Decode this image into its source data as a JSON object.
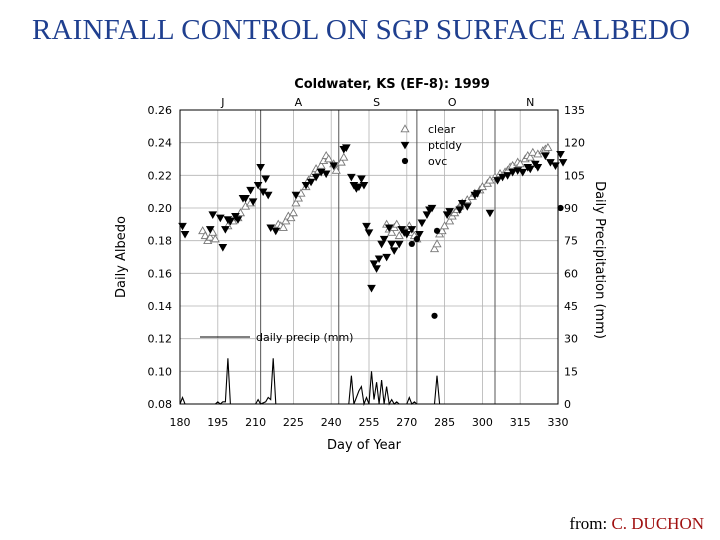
{
  "slide": {
    "title": "RAINFALL CONTROL ON SGP SURFACE ALBEDO",
    "credit_prefix": "from:",
    "credit_name": "C. DUCHON"
  },
  "colors": {
    "title": "#1f3f8f",
    "credit_name": "#a01010",
    "plot": "#000000"
  },
  "chart_data": {
    "type": "scatter",
    "title": "Coldwater, KS (EF-8):  1999",
    "xlabel": "Day of Year",
    "ylabel": "Daily Albedo",
    "y2label": "Daily Precipitation  (mm)",
    "xlim": [
      180,
      330
    ],
    "ylim": [
      0.08,
      0.26
    ],
    "y2lim": [
      0,
      135
    ],
    "xticks": [
      "180",
      "195",
      "210",
      "225",
      "240",
      "255",
      "270",
      "285",
      "300",
      "315",
      "330"
    ],
    "yticks": [
      "0.08",
      "0.10",
      "0.12",
      "0.14",
      "0.16",
      "0.18",
      "0.20",
      "0.22",
      "0.24",
      "0.26"
    ],
    "y2ticks": [
      "0",
      "15",
      "30",
      "45",
      "60",
      "75",
      "90",
      "105",
      "120",
      "135"
    ],
    "months": [
      {
        "label": "J",
        "x": 197
      },
      {
        "label": "A",
        "x": 227
      },
      {
        "label": "S",
        "x": 258
      },
      {
        "label": "O",
        "x": 288
      },
      {
        "label": "N",
        "x": 319
      }
    ],
    "month_boundaries": [
      212,
      243,
      274,
      305
    ],
    "grid": true,
    "legend_position": "top-right",
    "series": [
      {
        "name": "clear",
        "marker": "open-triangle-up",
        "points": [
          [
            189,
            0.186
          ],
          [
            190,
            0.183
          ],
          [
            191,
            0.18
          ],
          [
            192,
            0.182
          ],
          [
            193,
            0.185
          ],
          [
            194,
            0.181
          ],
          [
            199,
            0.189
          ],
          [
            201,
            0.192
          ],
          [
            203,
            0.194
          ],
          [
            204,
            0.197
          ],
          [
            206,
            0.201
          ],
          [
            208,
            0.203
          ],
          [
            219,
            0.19
          ],
          [
            220,
            0.189
          ],
          [
            221,
            0.188
          ],
          [
            222,
            0.192
          ],
          [
            223,
            0.195
          ],
          [
            224,
            0.194
          ],
          [
            225,
            0.197
          ],
          [
            226,
            0.203
          ],
          [
            227,
            0.206
          ],
          [
            228,
            0.209
          ],
          [
            230,
            0.213
          ],
          [
            231,
            0.217
          ],
          [
            233,
            0.221
          ],
          [
            234,
            0.224
          ],
          [
            235,
            0.223
          ],
          [
            236,
            0.226
          ],
          [
            237,
            0.229
          ],
          [
            238,
            0.232
          ],
          [
            239,
            0.23
          ],
          [
            241,
            0.227
          ],
          [
            242,
            0.223
          ],
          [
            244,
            0.228
          ],
          [
            245,
            0.231
          ],
          [
            262,
            0.19
          ],
          [
            263,
            0.187
          ],
          [
            264,
            0.185
          ],
          [
            265,
            0.188
          ],
          [
            266,
            0.19
          ],
          [
            267,
            0.183
          ],
          [
            271,
            0.189
          ],
          [
            272,
            0.185
          ],
          [
            273,
            0.183
          ],
          [
            274,
            0.181
          ],
          [
            281,
            0.175
          ],
          [
            282,
            0.178
          ],
          [
            283,
            0.184
          ],
          [
            284,
            0.186
          ],
          [
            285,
            0.189
          ],
          [
            287,
            0.192
          ],
          [
            288,
            0.195
          ],
          [
            289,
            0.197
          ],
          [
            290,
            0.199
          ],
          [
            291,
            0.201
          ],
          [
            292,
            0.203
          ],
          [
            294,
            0.205
          ],
          [
            296,
            0.207
          ],
          [
            297,
            0.209
          ],
          [
            299,
            0.211
          ],
          [
            300,
            0.213
          ],
          [
            302,
            0.215
          ],
          [
            303,
            0.217
          ],
          [
            305,
            0.219
          ],
          [
            307,
            0.221
          ],
          [
            309,
            0.222
          ],
          [
            310,
            0.223
          ],
          [
            311,
            0.225
          ],
          [
            312,
            0.226
          ],
          [
            314,
            0.228
          ],
          [
            315,
            0.227
          ],
          [
            317,
            0.23
          ],
          [
            318,
            0.232
          ],
          [
            319,
            0.231
          ],
          [
            320,
            0.234
          ],
          [
            322,
            0.233
          ],
          [
            324,
            0.235
          ],
          [
            325,
            0.236
          ],
          [
            326,
            0.237
          ]
        ]
      },
      {
        "name": "ptcldy",
        "marker": "filled-triangle-down",
        "points": [
          [
            181,
            0.189
          ],
          [
            182,
            0.184
          ],
          [
            192,
            0.187
          ],
          [
            193,
            0.196
          ],
          [
            196,
            0.194
          ],
          [
            197,
            0.176
          ],
          [
            198,
            0.187
          ],
          [
            199,
            0.193
          ],
          [
            200,
            0.192
          ],
          [
            202,
            0.195
          ],
          [
            203,
            0.193
          ],
          [
            205,
            0.206
          ],
          [
            206,
            0.206
          ],
          [
            208,
            0.211
          ],
          [
            209,
            0.204
          ],
          [
            211,
            0.214
          ],
          [
            212,
            0.225
          ],
          [
            213,
            0.21
          ],
          [
            214,
            0.218
          ],
          [
            215,
            0.208
          ],
          [
            216,
            0.188
          ],
          [
            218,
            0.186
          ],
          [
            226,
            0.208
          ],
          [
            230,
            0.214
          ],
          [
            232,
            0.216
          ],
          [
            234,
            0.219
          ],
          [
            236,
            0.222
          ],
          [
            238,
            0.221
          ],
          [
            241,
            0.226
          ],
          [
            245,
            0.236
          ],
          [
            246,
            0.237
          ],
          [
            248,
            0.219
          ],
          [
            249,
            0.214
          ],
          [
            250,
            0.212
          ],
          [
            251,
            0.213
          ],
          [
            252,
            0.218
          ],
          [
            253,
            0.214
          ],
          [
            254,
            0.189
          ],
          [
            255,
            0.185
          ],
          [
            256,
            0.151
          ],
          [
            257,
            0.166
          ],
          [
            258,
            0.163
          ],
          [
            259,
            0.169
          ],
          [
            260,
            0.178
          ],
          [
            261,
            0.181
          ],
          [
            262,
            0.17
          ],
          [
            263,
            0.188
          ],
          [
            264,
            0.178
          ],
          [
            265,
            0.174
          ],
          [
            267,
            0.178
          ],
          [
            268,
            0.187
          ],
          [
            269,
            0.185
          ],
          [
            270,
            0.184
          ],
          [
            272,
            0.187
          ],
          [
            275,
            0.184
          ],
          [
            276,
            0.191
          ],
          [
            278,
            0.196
          ],
          [
            279,
            0.199
          ],
          [
            280,
            0.2
          ],
          [
            286,
            0.196
          ],
          [
            287,
            0.198
          ],
          [
            291,
            0.199
          ],
          [
            292,
            0.203
          ],
          [
            294,
            0.201
          ],
          [
            297,
            0.208
          ],
          [
            298,
            0.209
          ],
          [
            303,
            0.197
          ],
          [
            306,
            0.217
          ],
          [
            308,
            0.219
          ],
          [
            310,
            0.22
          ],
          [
            312,
            0.222
          ],
          [
            314,
            0.223
          ],
          [
            316,
            0.222
          ],
          [
            318,
            0.225
          ],
          [
            319,
            0.224
          ],
          [
            321,
            0.227
          ],
          [
            322,
            0.225
          ],
          [
            325,
            0.232
          ],
          [
            327,
            0.228
          ],
          [
            329,
            0.226
          ],
          [
            331,
            0.233
          ],
          [
            332,
            0.228
          ]
        ]
      },
      {
        "name": "ovc",
        "marker": "filled-circle",
        "points": [
          [
            272,
            0.178
          ],
          [
            274,
            0.181
          ],
          [
            281,
            0.134
          ],
          [
            282,
            0.186
          ],
          [
            331,
            0.2
          ]
        ]
      }
    ],
    "precip_series": {
      "name": "daily precip (mm)",
      "axis": "right",
      "points": [
        [
          180,
          0
        ],
        [
          181,
          3
        ],
        [
          182,
          0
        ],
        [
          194,
          0
        ],
        [
          195,
          1
        ],
        [
          196,
          0
        ],
        [
          197,
          1
        ],
        [
          198,
          1
        ],
        [
          199,
          21
        ],
        [
          200,
          0
        ],
        [
          210,
          0
        ],
        [
          211,
          2
        ],
        [
          212,
          0
        ],
        [
          214,
          1
        ],
        [
          215,
          3
        ],
        [
          216,
          2
        ],
        [
          217,
          21
        ],
        [
          218,
          0
        ],
        [
          247,
          0
        ],
        [
          248,
          13
        ],
        [
          249,
          0
        ],
        [
          250,
          3
        ],
        [
          251,
          6
        ],
        [
          252,
          8
        ],
        [
          253,
          0
        ],
        [
          254,
          3
        ],
        [
          255,
          0
        ],
        [
          256,
          15
        ],
        [
          257,
          2
        ],
        [
          258,
          10
        ],
        [
          259,
          0
        ],
        [
          260,
          11
        ],
        [
          261,
          0
        ],
        [
          262,
          8
        ],
        [
          263,
          0
        ],
        [
          264,
          2
        ],
        [
          265,
          0
        ],
        [
          266,
          1
        ],
        [
          267,
          0
        ],
        [
          270,
          0
        ],
        [
          271,
          3
        ],
        [
          272,
          0
        ],
        [
          273,
          1
        ],
        [
          274,
          0
        ],
        [
          281,
          0
        ],
        [
          282,
          13
        ],
        [
          283,
          0
        ],
        [
          330,
          0
        ]
      ]
    }
  }
}
